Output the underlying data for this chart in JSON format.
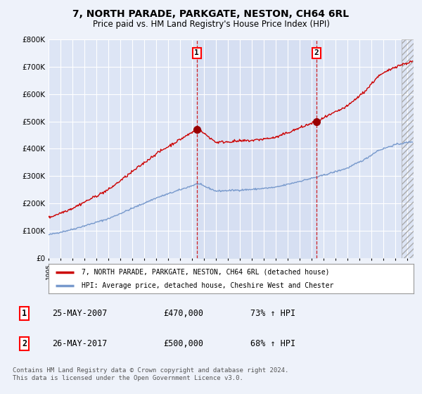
{
  "title": "7, NORTH PARADE, PARKGATE, NESTON, CH64 6RL",
  "subtitle": "Price paid vs. HM Land Registry's House Price Index (HPI)",
  "ylim": [
    0,
    800000
  ],
  "yticks": [
    0,
    100000,
    200000,
    300000,
    400000,
    500000,
    600000,
    700000,
    800000
  ],
  "ytick_labels": [
    "£0",
    "£100K",
    "£200K",
    "£300K",
    "£400K",
    "£500K",
    "£600K",
    "£700K",
    "£800K"
  ],
  "xlim_start": 1995.0,
  "xlim_end": 2025.5,
  "background_color": "#eef2fa",
  "plot_bg_color": "#dde5f5",
  "plot_bg_color2": "#ccd8f0",
  "grid_color": "#ffffff",
  "red_line_color": "#cc0000",
  "blue_line_color": "#7799cc",
  "shade_between_color": "#d0dbf0",
  "sale1_x": 2007.38,
  "sale1_y": 470000,
  "sale1_label": "1",
  "sale1_date": "25-MAY-2007",
  "sale1_price": "£470,000",
  "sale1_hpi": "73% ↑ HPI",
  "sale2_x": 2017.38,
  "sale2_y": 500000,
  "sale2_label": "2",
  "sale2_date": "26-MAY-2017",
  "sale2_price": "£500,000",
  "sale2_hpi": "68% ↑ HPI",
  "legend_line1": "7, NORTH PARADE, PARKGATE, NESTON, CH64 6RL (detached house)",
  "legend_line2": "HPI: Average price, detached house, Cheshire West and Chester",
  "footer": "Contains HM Land Registry data © Crown copyright and database right 2024.\nThis data is licensed under the Open Government Licence v3.0."
}
